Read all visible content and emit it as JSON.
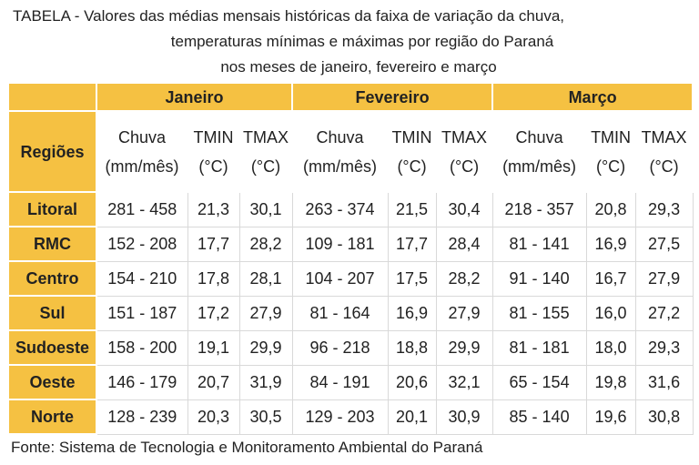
{
  "title": [
    "TABELA - Valores das médias mensais históricas da faixa de variação da chuva,",
    "temperaturas mínimas e máximas por região  do Paraná",
    "nos meses de janeiro, fevereiro e março"
  ],
  "table": {
    "row_header": "Regiões",
    "months": [
      "Janeiro",
      "Fevereiro",
      "Março"
    ],
    "columns": [
      [
        "Chuva",
        "(mm/mês)"
      ],
      [
        "TMIN",
        "(°C)"
      ],
      [
        "TMAX",
        "(°C)"
      ],
      [
        "Chuva",
        "(mm/mês)"
      ],
      [
        "TMIN",
        "(°C)"
      ],
      [
        "TMAX",
        "(°C)"
      ],
      [
        "Chuva",
        "(mm/mês)"
      ],
      [
        "TMIN",
        "(°C)"
      ],
      [
        "TMAX",
        "(°C)"
      ]
    ],
    "rows": [
      [
        "Litoral",
        "281 - 458",
        "21,3",
        "30,1",
        "263 - 374",
        "21,5",
        "30,4",
        "218 - 357",
        "20,8",
        "29,3"
      ],
      [
        "RMC",
        "152 - 208",
        "17,7",
        "28,2",
        "109 - 181",
        "17,7",
        "28,4",
        "81 - 141",
        "16,9",
        "27,5"
      ],
      [
        "Centro",
        "154 - 210",
        "17,8",
        "28,1",
        "104 - 207",
        "17,5",
        "28,2",
        "91 - 140",
        "16,7",
        "27,9"
      ],
      [
        "Sul",
        "151 - 187",
        "17,2",
        "27,9",
        "81 - 164",
        "16,9",
        "27,9",
        "81 - 155",
        "16,0",
        "27,2"
      ],
      [
        "Sudoeste",
        "158 - 200",
        "19,1",
        "29,9",
        "96 - 218",
        "18,8",
        "29,9",
        "81 - 181",
        "18,0",
        "29,3"
      ],
      [
        "Oeste",
        "146 - 179",
        "20,7",
        "31,9",
        "84 - 191",
        "20,6",
        "32,1",
        "65 - 154",
        "19,8",
        "31,6"
      ],
      [
        "Norte",
        "128 - 239",
        "20,3",
        "30,5",
        "129 - 203",
        "20,1",
        "30,9",
        "85 - 140",
        "19,6",
        "30,8"
      ]
    ]
  },
  "source": "Fonte: Sistema de Tecnologia e Monitoramento Ambiental do Paraná"
}
